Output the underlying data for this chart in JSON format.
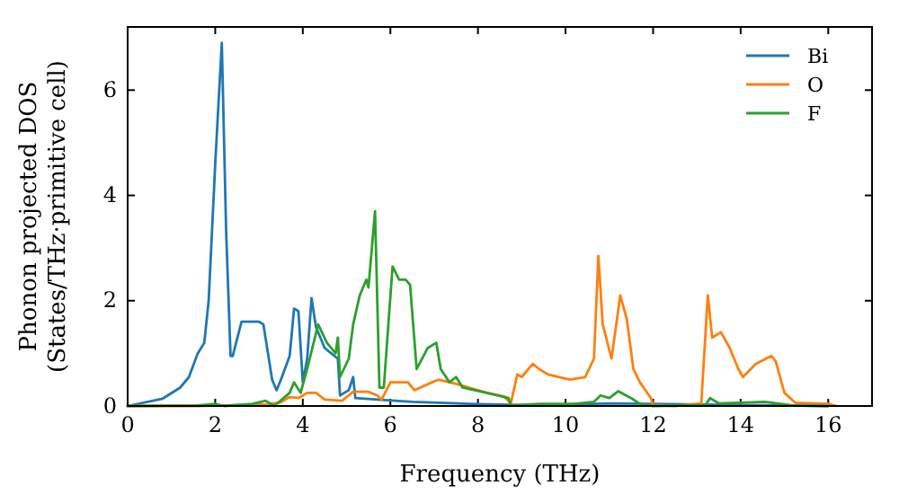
{
  "chart_data": {
    "type": "line",
    "xlabel": "Frequency (THz)",
    "ylabel": "Phonon projected DOS\n(States/THz·primitive cell)",
    "xlim": [
      0,
      17
    ],
    "ylim": [
      0,
      7.2
    ],
    "xticks": [
      0,
      2,
      4,
      6,
      8,
      10,
      12,
      14,
      16
    ],
    "yticks": [
      0,
      2,
      4,
      6
    ],
    "grid": false,
    "legend": "top right",
    "series": [
      {
        "name": "Bi",
        "color": "#1f77b4",
        "x": [
          0,
          0.8,
          1.2,
          1.4,
          1.6,
          1.75,
          1.85,
          2.0,
          2.15,
          2.25,
          2.35,
          2.4,
          2.6,
          3.0,
          3.1,
          3.3,
          3.4,
          3.5,
          3.7,
          3.8,
          3.9,
          4.0,
          4.1,
          4.2,
          4.3,
          4.5,
          4.65,
          4.8,
          4.85,
          5.05,
          5.15,
          5.2,
          5.7,
          6.5,
          7.8,
          9.4,
          11,
          14,
          16
        ],
        "values": [
          0,
          0.14,
          0.35,
          0.55,
          1.0,
          1.2,
          2.0,
          4.6,
          6.9,
          3.3,
          0.95,
          0.95,
          1.6,
          1.6,
          1.55,
          0.5,
          0.3,
          0.5,
          0.95,
          1.85,
          1.8,
          0.45,
          0.9,
          2.05,
          1.5,
          1.1,
          1.0,
          0.9,
          0.2,
          0.3,
          0.55,
          0.15,
          0.12,
          0.08,
          0.04,
          0.01,
          0.05,
          0.02,
          0
        ]
      },
      {
        "name": "O",
        "color": "#ff7f0e",
        "x": [
          0,
          1.6,
          3.2,
          3.5,
          3.7,
          3.9,
          4.1,
          4.3,
          4.5,
          4.9,
          5.15,
          5.5,
          5.7,
          5.8,
          6.0,
          6.4,
          6.55,
          6.95,
          7.1,
          7.35,
          7.6,
          7.8,
          8.2,
          8.6,
          8.75,
          8.9,
          9.0,
          9.25,
          9.4,
          9.6,
          10.1,
          10.45,
          10.65,
          10.75,
          10.85,
          11.05,
          11.25,
          11.4,
          11.55,
          11.7,
          11.95,
          12.0,
          12.5,
          13.1,
          13.25,
          13.35,
          13.55,
          13.75,
          13.95,
          14.05,
          14.35,
          14.7,
          14.8,
          15.0,
          15.25,
          16.0,
          16.2
        ],
        "values": [
          0,
          0,
          0.03,
          0.07,
          0.17,
          0.15,
          0.25,
          0.25,
          0.12,
          0.1,
          0.27,
          0.27,
          0.2,
          0.12,
          0.45,
          0.45,
          0.3,
          0.45,
          0.5,
          0.45,
          0.4,
          0.35,
          0.25,
          0.18,
          0.05,
          0.6,
          0.55,
          0.8,
          0.7,
          0.6,
          0.5,
          0.55,
          0.9,
          2.85,
          1.55,
          0.9,
          2.1,
          1.65,
          0.7,
          0.45,
          0.15,
          0.02,
          0,
          0.05,
          2.1,
          1.3,
          1.4,
          1.1,
          0.7,
          0.55,
          0.8,
          0.95,
          0.85,
          0.25,
          0.06,
          0.04,
          0
        ]
      },
      {
        "name": "F",
        "color": "#2ca02c",
        "x": [
          0,
          1.6,
          2.0,
          2.2,
          2.85,
          3.15,
          3.35,
          3.7,
          3.8,
          3.95,
          4.1,
          4.35,
          4.55,
          4.75,
          4.8,
          4.85,
          5.05,
          5.15,
          5.3,
          5.45,
          5.5,
          5.65,
          5.75,
          5.85,
          6.05,
          6.2,
          6.35,
          6.45,
          6.6,
          6.85,
          7.05,
          7.15,
          7.35,
          7.5,
          7.65,
          8.2,
          8.7,
          8.75,
          9.4,
          10.2,
          10.65,
          10.8,
          11.0,
          11.2,
          11.5,
          11.7,
          12.0,
          13.2,
          13.3,
          13.5,
          14.55,
          15.2,
          16
        ],
        "values": [
          0,
          0.01,
          0.04,
          0,
          0.04,
          0.1,
          0,
          0.25,
          0.45,
          0.25,
          0.7,
          1.55,
          1.2,
          1.0,
          1.3,
          0.55,
          0.9,
          1.55,
          2.1,
          2.4,
          2.25,
          3.7,
          0.35,
          0.35,
          2.65,
          2.4,
          2.4,
          2.3,
          0.7,
          1.1,
          1.2,
          0.7,
          0.45,
          0.55,
          0.35,
          0.25,
          0.15,
          0.01,
          0.04,
          0.04,
          0.08,
          0.2,
          0.15,
          0.28,
          0.15,
          0.04,
          0,
          0.02,
          0.15,
          0.05,
          0.08,
          0.01,
          0
        ]
      }
    ]
  }
}
